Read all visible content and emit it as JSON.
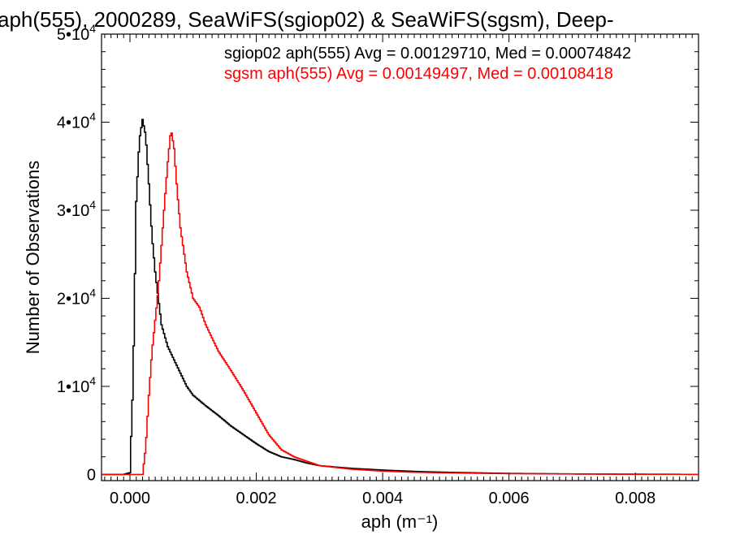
{
  "chart_data": {
    "type": "line",
    "title": "aph(555), 2000289, SeaWiFS(sgiop02) & SeaWiFS(sgsm), Deep-",
    "xlabel": "aph (m⁻¹)",
    "ylabel": "Number of Observations",
    "xlim": [
      -0.00045,
      0.009
    ],
    "ylim": [
      -700,
      50000
    ],
    "x_ticks": [
      {
        "value": 0.0,
        "label": "0.000"
      },
      {
        "value": 0.002,
        "label": "0.002"
      },
      {
        "value": 0.004,
        "label": "0.004"
      },
      {
        "value": 0.006,
        "label": "0.006"
      },
      {
        "value": 0.008,
        "label": "0.008"
      }
    ],
    "y_ticks": [
      {
        "value": 0,
        "base": "0",
        "exp": ""
      },
      {
        "value": 10000,
        "base": "1•10",
        "exp": "4"
      },
      {
        "value": 20000,
        "base": "2•10",
        "exp": "4"
      },
      {
        "value": 30000,
        "base": "3•10",
        "exp": "4"
      },
      {
        "value": 40000,
        "base": "4•10",
        "exp": "4"
      },
      {
        "value": 50000,
        "base": "5•10",
        "exp": "4"
      }
    ],
    "grid": false,
    "legend_position": "top-right",
    "series": [
      {
        "name": "sgiop02 aph(555) Avg = 0.00129710, Med = 0.00074842",
        "color": "#000000",
        "x": [
          -0.0004,
          -0.0001,
          0.0,
          5e-05,
          0.0001,
          0.00015,
          0.0002,
          0.00025,
          0.0003,
          0.00035,
          0.0004,
          0.00045,
          0.0005,
          0.0006,
          0.0007,
          0.0008,
          0.0009,
          0.001,
          0.0012,
          0.0014,
          0.0016,
          0.0018,
          0.002,
          0.0022,
          0.0024,
          0.0026,
          0.0028,
          0.003,
          0.0035,
          0.004,
          0.0045,
          0.005,
          0.006,
          0.007,
          0.008,
          0.009
        ],
        "y": [
          0,
          0,
          200,
          10500,
          31000,
          38000,
          40300,
          38500,
          33000,
          27000,
          23000,
          20000,
          17000,
          14500,
          13000,
          11500,
          10000,
          9000,
          7800,
          6700,
          5500,
          4500,
          3500,
          2600,
          2000,
          1700,
          1300,
          1000,
          700,
          500,
          350,
          250,
          120,
          60,
          30,
          10
        ]
      },
      {
        "name": "sgsm aph(555) Avg = 0.00149497, Med = 0.00108418",
        "color": "#ff0000",
        "x": [
          -0.0004,
          0.0002,
          0.00025,
          0.0003,
          0.00035,
          0.0004,
          0.00045,
          0.0005,
          0.00055,
          0.0006,
          0.00065,
          0.0007,
          0.00075,
          0.0008,
          0.0009,
          0.001,
          0.0011,
          0.0012,
          0.0014,
          0.0016,
          0.0018,
          0.002,
          0.0022,
          0.0024,
          0.0026,
          0.0028,
          0.003,
          0.0035,
          0.004,
          0.0045,
          0.005,
          0.006,
          0.007,
          0.008,
          0.009
        ],
        "y": [
          0,
          0,
          3000,
          9000,
          14000,
          17500,
          21000,
          26000,
          31000,
          35500,
          39200,
          37000,
          32000,
          28000,
          23000,
          20000,
          19000,
          17000,
          14000,
          11800,
          9500,
          7000,
          4500,
          2800,
          2000,
          1500,
          1000,
          600,
          380,
          250,
          180,
          90,
          50,
          25,
          10
        ]
      }
    ]
  }
}
